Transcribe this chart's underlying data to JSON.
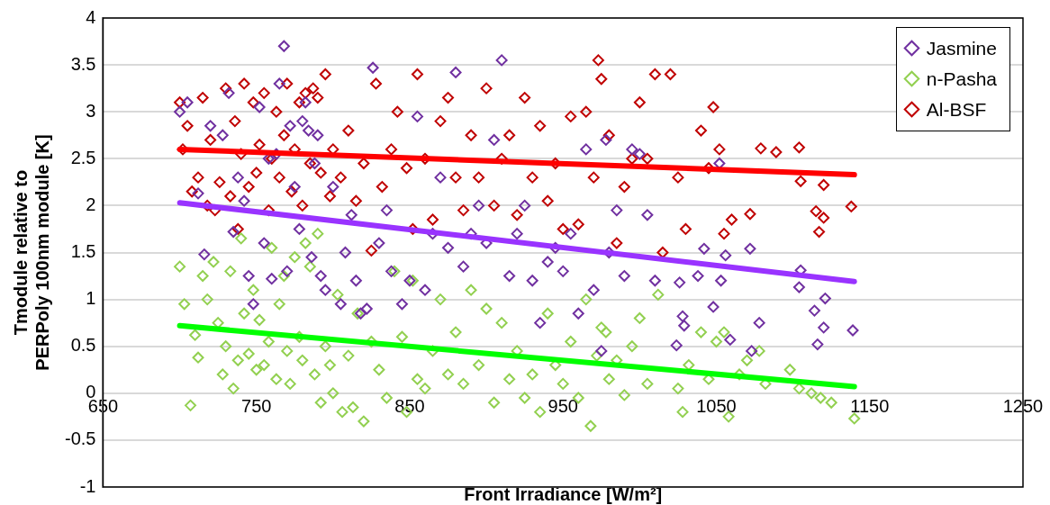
{
  "chart_data": {
    "type": "scatter",
    "xlabel": "Front Irradiance [W/m²]",
    "ylabel": "Tmodule relative to PERPoly 100nm module [K]",
    "xlim": [
      650,
      1250
    ],
    "xticks": [
      650,
      750,
      850,
      950,
      1050,
      1150,
      1250
    ],
    "ylim": [
      -1,
      4
    ],
    "yticks": [
      -1,
      -0.5,
      0,
      0.5,
      1,
      1.5,
      2,
      2.5,
      3,
      3.5,
      4
    ],
    "grid": "y",
    "legend": "top right",
    "marker": "diamond",
    "series": [
      {
        "name": "Jasmine",
        "color": "#7030a0",
        "x": [
          700,
          705,
          712,
          716,
          720,
          728,
          732,
          735,
          738,
          742,
          745,
          748,
          752,
          755,
          758,
          760,
          763,
          765,
          768,
          770,
          772,
          775,
          778,
          780,
          782,
          784,
          786,
          788,
          790,
          792,
          795,
          800,
          805,
          808,
          812,
          815,
          818,
          822,
          826,
          830,
          835,
          838,
          845,
          850,
          855,
          860,
          865,
          870,
          875,
          880,
          885,
          890,
          895,
          900,
          905,
          910,
          915,
          920,
          925,
          930,
          935,
          940,
          945,
          950,
          955,
          960,
          965,
          970,
          975,
          978,
          980,
          985,
          990,
          995,
          1000,
          1005,
          1010,
          1024,
          1026,
          1028,
          1029,
          1038,
          1042,
          1048,
          1052,
          1053,
          1056,
          1059,
          1072,
          1073,
          1078,
          1104,
          1105,
          1114,
          1116,
          1120,
          1121,
          1139
        ],
        "values": [
          3.0,
          3.1,
          2.13,
          1.48,
          2.85,
          2.75,
          3.2,
          1.72,
          2.3,
          2.05,
          1.25,
          0.95,
          3.05,
          1.6,
          2.5,
          1.22,
          2.55,
          3.3,
          3.7,
          1.3,
          2.85,
          2.2,
          1.75,
          2.9,
          3.1,
          2.8,
          1.45,
          2.45,
          2.75,
          1.25,
          1.1,
          2.2,
          0.95,
          1.5,
          1.9,
          1.2,
          0.85,
          0.9,
          3.47,
          1.6,
          1.95,
          1.3,
          0.95,
          1.2,
          2.95,
          1.1,
          1.7,
          2.3,
          1.55,
          3.42,
          1.35,
          1.7,
          2.0,
          1.6,
          2.7,
          3.55,
          1.25,
          1.7,
          2.0,
          1.2,
          0.75,
          1.4,
          1.55,
          1.3,
          1.7,
          0.85,
          2.6,
          1.1,
          0.45,
          2.7,
          1.5,
          1.95,
          1.25,
          2.6,
          2.55,
          1.9,
          1.2,
          0.51,
          1.18,
          0.82,
          0.72,
          1.25,
          1.54,
          0.92,
          2.45,
          1.2,
          1.47,
          0.57,
          1.54,
          0.45,
          0.75,
          1.13,
          1.31,
          0.88,
          0.52,
          0.7,
          1.01,
          0.67
        ]
      },
      {
        "name": "n-Pasha",
        "color": "#92d050",
        "x": [
          700,
          703,
          707,
          710,
          712,
          715,
          718,
          722,
          725,
          728,
          730,
          733,
          735,
          738,
          740,
          742,
          745,
          748,
          750,
          752,
          755,
          758,
          760,
          763,
          765,
          768,
          770,
          772,
          775,
          778,
          780,
          782,
          785,
          788,
          790,
          792,
          795,
          798,
          800,
          803,
          806,
          810,
          813,
          816,
          820,
          825,
          830,
          835,
          840,
          845,
          848,
          852,
          855,
          860,
          865,
          870,
          875,
          880,
          885,
          890,
          895,
          900,
          905,
          910,
          915,
          920,
          925,
          930,
          935,
          940,
          945,
          950,
          955,
          960,
          965,
          968,
          972,
          975,
          978,
          980,
          985,
          990,
          995,
          1000,
          1005,
          1012,
          1025,
          1028,
          1032,
          1040,
          1045,
          1050,
          1055,
          1058,
          1065,
          1070,
          1078,
          1082,
          1098,
          1104,
          1112,
          1118,
          1125,
          1140
        ],
        "values": [
          1.35,
          0.95,
          -0.13,
          0.62,
          0.38,
          1.25,
          1.0,
          1.4,
          0.75,
          0.2,
          0.5,
          1.3,
          0.05,
          0.35,
          1.65,
          0.85,
          0.42,
          1.1,
          0.25,
          0.78,
          0.3,
          0.55,
          1.55,
          0.15,
          0.95,
          1.25,
          0.45,
          0.1,
          1.45,
          0.6,
          0.35,
          1.6,
          1.35,
          0.2,
          1.7,
          -0.1,
          0.5,
          0.3,
          0.0,
          1.05,
          -0.2,
          0.4,
          -0.15,
          0.85,
          -0.3,
          0.55,
          0.25,
          -0.05,
          1.3,
          0.6,
          -0.2,
          1.2,
          0.15,
          0.05,
          0.45,
          1.0,
          0.2,
          0.65,
          0.1,
          1.1,
          0.3,
          0.9,
          -0.1,
          0.75,
          0.15,
          0.45,
          -0.05,
          0.2,
          -0.2,
          0.85,
          0.3,
          0.1,
          0.55,
          -0.05,
          1.0,
          -0.35,
          0.4,
          0.7,
          0.65,
          0.15,
          0.35,
          -0.02,
          0.5,
          0.8,
          0.1,
          1.05,
          0.05,
          -0.2,
          0.3,
          0.65,
          0.15,
          0.55,
          0.65,
          -0.25,
          0.2,
          0.35,
          0.45,
          0.1,
          0.25,
          0.05,
          0.0,
          -0.05,
          -0.1,
          -0.27
        ]
      },
      {
        "name": "Al-BSF",
        "color": "#c00000",
        "x": [
          700,
          702,
          705,
          708,
          712,
          715,
          718,
          720,
          723,
          726,
          730,
          733,
          736,
          738,
          740,
          742,
          745,
          748,
          750,
          752,
          755,
          758,
          760,
          763,
          765,
          768,
          770,
          773,
          775,
          778,
          780,
          782,
          785,
          787,
          790,
          792,
          795,
          798,
          800,
          805,
          810,
          815,
          820,
          825,
          828,
          832,
          838,
          842,
          848,
          852,
          855,
          860,
          865,
          870,
          875,
          880,
          885,
          890,
          895,
          900,
          905,
          910,
          915,
          920,
          925,
          930,
          935,
          940,
          945,
          950,
          955,
          960,
          965,
          970,
          973,
          975,
          980,
          985,
          990,
          995,
          1000,
          1005,
          1010,
          1015,
          1020,
          1025,
          1030,
          1040,
          1045,
          1048,
          1052,
          1055,
          1060,
          1072,
          1079,
          1089,
          1104,
          1105,
          1115,
          1117,
          1120,
          1120,
          1138
        ],
        "values": [
          3.1,
          2.6,
          2.85,
          2.15,
          2.3,
          3.15,
          2.0,
          2.7,
          1.95,
          2.25,
          3.25,
          2.1,
          2.9,
          1.75,
          2.55,
          3.3,
          2.2,
          3.1,
          2.35,
          2.65,
          3.2,
          1.95,
          2.5,
          3.0,
          2.3,
          2.75,
          3.3,
          2.15,
          2.6,
          3.1,
          2.0,
          3.2,
          2.45,
          3.25,
          3.15,
          2.35,
          3.4,
          2.1,
          2.6,
          2.3,
          2.8,
          2.05,
          2.45,
          1.52,
          3.3,
          2.2,
          2.6,
          3.0,
          2.4,
          1.75,
          3.4,
          2.5,
          1.85,
          2.9,
          3.15,
          2.3,
          1.95,
          2.75,
          2.3,
          3.25,
          2.0,
          2.5,
          2.75,
          1.9,
          3.15,
          2.3,
          2.85,
          2.05,
          2.45,
          1.75,
          2.95,
          1.8,
          3.0,
          2.3,
          3.55,
          3.35,
          2.75,
          1.6,
          2.2,
          2.5,
          3.1,
          2.5,
          3.4,
          1.5,
          3.4,
          2.3,
          1.75,
          2.8,
          2.4,
          3.05,
          2.6,
          1.7,
          1.85,
          1.91,
          2.61,
          2.57,
          2.62,
          2.26,
          1.94,
          1.72,
          2.22,
          1.87,
          1.99
        ]
      },
      {
        "type": "line",
        "color": "#9933ff",
        "marker": "none",
        "x": [
          700,
          1140
        ],
        "values": [
          2.03,
          1.19
        ]
      },
      {
        "type": "line",
        "color": "#00ff00",
        "marker": "none",
        "x": [
          700,
          1140
        ],
        "values": [
          0.72,
          0.07
        ]
      },
      {
        "type": "line",
        "color": "#ff0000",
        "marker": "none",
        "x": [
          700,
          1140
        ],
        "values": [
          2.6,
          2.33
        ]
      }
    ]
  }
}
